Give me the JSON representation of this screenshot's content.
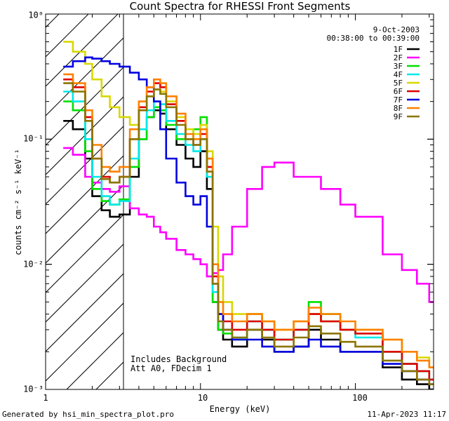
{
  "chart_data": {
    "type": "line",
    "title": "Count Spectra for RHESSI Front Segments",
    "xlabel": "Energy (keV)",
    "ylabel": "counts cm⁻² s⁻¹ keV⁻¹",
    "xscale": "log",
    "yscale": "log",
    "xlim": [
      1,
      320
    ],
    "ylim": [
      0.001,
      1
    ],
    "x_tick_labels": [
      "1",
      "10",
      "100"
    ],
    "y_tick_labels": [
      "10⁻³",
      "10⁻²",
      "10⁻¹",
      "10⁰"
    ],
    "date": "9-Oct-2003",
    "time_range": "00:38:00 to 00:39:00",
    "hatched_region_keV": [
      1,
      3
    ],
    "annotation_lines": [
      "Includes Background",
      "Att A0, FDecim 1"
    ],
    "footer_left": "Generated by hsi_min_spectra_plot.pro",
    "footer_right": "11-Apr-2023 11:17",
    "series": [
      {
        "name": "1F",
        "color": "#000000",
        "x": [
          1.3,
          1.5,
          1.8,
          2.0,
          2.3,
          2.6,
          3.0,
          3.5,
          4.0,
          4.5,
          5.0,
          5.5,
          6.0,
          7.0,
          8.0,
          9.0,
          10.0,
          11.0,
          12.0,
          13.0,
          14.0,
          16.0,
          20.0,
          25.0,
          30.0,
          40.0,
          50.0,
          60.0,
          80.0,
          100.0,
          150.0,
          200.0,
          250.0,
          300.0
        ],
        "y": [
          0.14,
          0.12,
          0.07,
          0.035,
          0.027,
          0.024,
          0.025,
          0.05,
          0.1,
          0.15,
          0.17,
          0.16,
          0.12,
          0.09,
          0.07,
          0.06,
          0.08,
          0.04,
          0.005,
          0.003,
          0.0025,
          0.0022,
          0.003,
          0.0025,
          0.002,
          0.0022,
          0.003,
          0.0025,
          0.002,
          0.002,
          0.0015,
          0.0012,
          0.0011,
          0.001
        ]
      },
      {
        "name": "2F",
        "color": "#ff00ff",
        "x": [
          1.3,
          1.5,
          1.8,
          2.0,
          2.3,
          2.6,
          3.0,
          3.5,
          4.0,
          4.5,
          5.0,
          5.5,
          6.0,
          7.0,
          8.0,
          9.0,
          10.0,
          11.0,
          12.0,
          13.0,
          14.0,
          16.0,
          20.0,
          25.0,
          30.0,
          40.0,
          50.0,
          60.0,
          80.0,
          100.0,
          150.0,
          200.0,
          250.0,
          300.0
        ],
        "y": [
          0.085,
          0.075,
          0.05,
          0.045,
          0.04,
          0.038,
          0.042,
          0.028,
          0.025,
          0.024,
          0.02,
          0.018,
          0.016,
          0.013,
          0.012,
          0.011,
          0.01,
          0.008,
          0.0085,
          0.009,
          0.012,
          0.02,
          0.04,
          0.06,
          0.065,
          0.05,
          0.05,
          0.04,
          0.03,
          0.024,
          0.012,
          0.009,
          0.007,
          0.005
        ]
      },
      {
        "name": "3F",
        "color": "#00e000",
        "x": [
          1.3,
          1.5,
          1.8,
          2.0,
          2.3,
          2.6,
          3.0,
          3.5,
          4.0,
          4.5,
          5.0,
          5.5,
          6.0,
          7.0,
          8.0,
          9.0,
          10.0,
          11.0,
          12.0,
          13.0,
          14.0,
          16.0,
          20.0,
          25.0,
          30.0,
          40.0,
          50.0,
          60.0,
          80.0,
          100.0,
          150.0,
          200.0,
          250.0,
          300.0
        ],
        "y": [
          0.2,
          0.17,
          0.08,
          0.04,
          0.032,
          0.03,
          0.033,
          0.06,
          0.1,
          0.15,
          0.18,
          0.17,
          0.13,
          0.1,
          0.1,
          0.12,
          0.15,
          0.07,
          0.005,
          0.003,
          0.0028,
          0.0025,
          0.004,
          0.003,
          0.0025,
          0.003,
          0.005,
          0.004,
          0.003,
          0.0028,
          0.002,
          0.0016,
          0.0014,
          0.0012
        ]
      },
      {
        "name": "4F",
        "color": "#00e8e8",
        "x": [
          1.3,
          1.5,
          1.8,
          2.0,
          2.3,
          2.6,
          3.0,
          3.5,
          4.0,
          4.5,
          5.0,
          5.5,
          6.0,
          7.0,
          8.0,
          9.0,
          10.0,
          11.0,
          12.0,
          13.0,
          14.0,
          16.0,
          20.0,
          25.0,
          30.0,
          40.0,
          50.0,
          60.0,
          80.0,
          100.0,
          150.0,
          200.0,
          250.0,
          300.0
        ],
        "y": [
          0.24,
          0.2,
          0.1,
          0.05,
          0.035,
          0.03,
          0.032,
          0.07,
          0.12,
          0.17,
          0.2,
          0.19,
          0.14,
          0.11,
          0.09,
          0.08,
          0.1,
          0.05,
          0.006,
          0.0035,
          0.003,
          0.0026,
          0.0035,
          0.003,
          0.0025,
          0.003,
          0.004,
          0.0035,
          0.003,
          0.0026,
          0.002,
          0.0016,
          0.0014,
          0.0012
        ]
      },
      {
        "name": "5F",
        "color": "#d8d800",
        "x": [
          1.3,
          1.5,
          1.8,
          2.0,
          2.3,
          2.6,
          3.0,
          3.5,
          4.0,
          4.5,
          5.0,
          5.5,
          6.0,
          7.0,
          8.0,
          9.0,
          10.0,
          11.0,
          12.0,
          13.0,
          14.0,
          16.0,
          20.0,
          25.0,
          30.0,
          40.0,
          50.0,
          60.0,
          80.0,
          100.0,
          150.0,
          200.0,
          250.0,
          300.0
        ],
        "y": [
          0.6,
          0.5,
          0.4,
          0.3,
          0.22,
          0.18,
          0.15,
          0.13,
          0.17,
          0.22,
          0.25,
          0.24,
          0.2,
          0.15,
          0.12,
          0.11,
          0.13,
          0.08,
          0.02,
          0.008,
          0.005,
          0.004,
          0.004,
          0.0035,
          0.003,
          0.0035,
          0.004,
          0.0035,
          0.003,
          0.003,
          0.0025,
          0.002,
          0.0018,
          0.0015
        ]
      },
      {
        "name": "6F",
        "color": "#e00000",
        "x": [
          1.3,
          1.5,
          1.8,
          2.0,
          2.3,
          2.6,
          3.0,
          3.5,
          4.0,
          4.5,
          5.0,
          5.5,
          6.0,
          7.0,
          8.0,
          9.0,
          10.0,
          11.0,
          12.0,
          13.0,
          14.0,
          16.0,
          20.0,
          25.0,
          30.0,
          40.0,
          50.0,
          60.0,
          80.0,
          100.0,
          150.0,
          200.0,
          250.0,
          300.0
        ],
        "y": [
          0.3,
          0.26,
          0.15,
          0.07,
          0.05,
          0.045,
          0.05,
          0.1,
          0.18,
          0.24,
          0.28,
          0.26,
          0.19,
          0.14,
          0.1,
          0.09,
          0.11,
          0.06,
          0.008,
          0.004,
          0.0035,
          0.003,
          0.0035,
          0.003,
          0.0025,
          0.003,
          0.004,
          0.0035,
          0.003,
          0.0028,
          0.002,
          0.0016,
          0.0014,
          0.0012
        ]
      },
      {
        "name": "7F",
        "color": "#0000e0",
        "x": [
          1.3,
          1.5,
          1.8,
          2.0,
          2.3,
          2.6,
          3.0,
          3.5,
          4.0,
          4.5,
          5.0,
          5.5,
          6.0,
          7.0,
          8.0,
          9.0,
          10.0,
          11.0,
          12.0,
          13.0,
          14.0,
          16.0,
          20.0,
          25.0,
          30.0,
          40.0,
          50.0,
          60.0,
          80.0,
          100.0,
          150.0,
          200.0,
          250.0,
          300.0
        ],
        "y": [
          0.38,
          0.42,
          0.45,
          0.44,
          0.42,
          0.4,
          0.38,
          0.34,
          0.3,
          0.26,
          0.2,
          0.12,
          0.07,
          0.045,
          0.035,
          0.03,
          0.035,
          0.02,
          0.007,
          0.004,
          0.003,
          0.0025,
          0.0025,
          0.0022,
          0.002,
          0.0022,
          0.0025,
          0.0022,
          0.002,
          0.002,
          0.0016,
          0.0014,
          0.0012,
          0.0011
        ]
      },
      {
        "name": "8F",
        "color": "#ff8000",
        "x": [
          1.3,
          1.5,
          1.8,
          2.0,
          2.3,
          2.6,
          3.0,
          3.5,
          4.0,
          4.5,
          5.0,
          5.5,
          6.0,
          7.0,
          8.0,
          9.0,
          10.0,
          11.0,
          12.0,
          13.0,
          14.0,
          16.0,
          20.0,
          25.0,
          30.0,
          40.0,
          50.0,
          60.0,
          80.0,
          100.0,
          150.0,
          200.0,
          250.0,
          300.0
        ],
        "y": [
          0.33,
          0.28,
          0.17,
          0.09,
          0.06,
          0.055,
          0.06,
          0.12,
          0.2,
          0.26,
          0.3,
          0.28,
          0.22,
          0.16,
          0.11,
          0.1,
          0.12,
          0.07,
          0.01,
          0.005,
          0.004,
          0.0035,
          0.004,
          0.0035,
          0.003,
          0.0035,
          0.0045,
          0.004,
          0.0035,
          0.003,
          0.0025,
          0.002,
          0.0017,
          0.0015
        ]
      },
      {
        "name": "9F",
        "color": "#8b7500",
        "x": [
          1.3,
          1.5,
          1.8,
          2.0,
          2.3,
          2.6,
          3.0,
          3.5,
          4.0,
          4.5,
          5.0,
          5.5,
          6.0,
          7.0,
          8.0,
          9.0,
          10.0,
          11.0,
          12.0,
          13.0,
          14.0,
          16.0,
          20.0,
          25.0,
          30.0,
          40.0,
          50.0,
          60.0,
          80.0,
          100.0,
          150.0,
          200.0,
          250.0,
          300.0
        ],
        "y": [
          0.28,
          0.24,
          0.14,
          0.07,
          0.048,
          0.045,
          0.05,
          0.1,
          0.17,
          0.22,
          0.25,
          0.23,
          0.18,
          0.13,
          0.1,
          0.09,
          0.1,
          0.055,
          0.007,
          0.0035,
          0.003,
          0.0026,
          0.003,
          0.0026,
          0.0022,
          0.0026,
          0.0032,
          0.0028,
          0.0024,
          0.0022,
          0.0017,
          0.0014,
          0.0012,
          0.0011
        ]
      }
    ]
  }
}
